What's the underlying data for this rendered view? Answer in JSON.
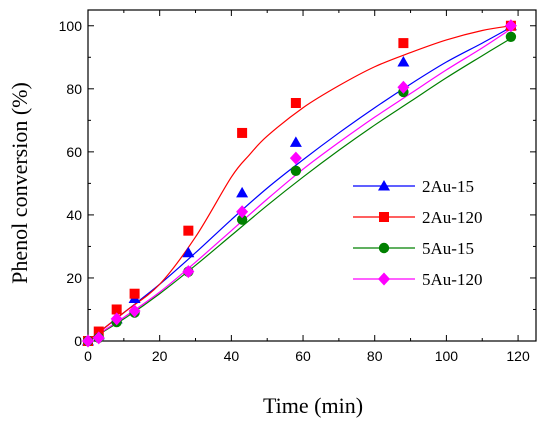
{
  "chart_data": {
    "type": "scatter",
    "title": "",
    "xlabel": "Time (min)",
    "ylabel": "Phenol conversion (%)",
    "xlim": [
      0,
      125
    ],
    "ylim": [
      0,
      105
    ],
    "xticks": [
      "0",
      "20",
      "40",
      "60",
      "80",
      "100",
      "120"
    ],
    "yticks": [
      "0",
      "20",
      "40",
      "60",
      "80",
      "100"
    ],
    "grid": false,
    "legend_position": "right",
    "series": [
      {
        "name": "2Au-15",
        "color": "#0000ff",
        "marker": "triangle",
        "x": [
          0,
          3,
          8,
          13,
          28,
          43,
          58,
          88,
          118
        ],
        "y": [
          0,
          2,
          7,
          13.5,
          28,
          47,
          63,
          88.5,
          100
        ],
        "fit": [
          [
            0,
            0
          ],
          [
            10,
            9
          ],
          [
            20,
            18
          ],
          [
            30,
            28
          ],
          [
            40,
            38.5
          ],
          [
            50,
            48.5
          ],
          [
            60,
            57.5
          ],
          [
            70,
            66
          ],
          [
            80,
            74
          ],
          [
            90,
            81.5
          ],
          [
            100,
            88.5
          ],
          [
            110,
            94.5
          ],
          [
            118,
            99.5
          ]
        ]
      },
      {
        "name": "2Au-120",
        "color": "#ff0000",
        "marker": "square",
        "x": [
          0,
          3,
          8,
          13,
          28,
          43,
          58,
          88,
          118
        ],
        "y": [
          0,
          3,
          10,
          15,
          35,
          66,
          75.5,
          94.5,
          100
        ],
        "fit": [
          [
            0,
            0
          ],
          [
            10,
            9
          ],
          [
            20,
            18
          ],
          [
            30,
            33
          ],
          [
            40,
            52
          ],
          [
            45,
            59
          ],
          [
            50,
            65
          ],
          [
            60,
            74
          ],
          [
            70,
            81
          ],
          [
            80,
            87
          ],
          [
            90,
            91.5
          ],
          [
            100,
            95.5
          ],
          [
            110,
            98.5
          ],
          [
            118,
            100
          ]
        ]
      },
      {
        "name": "5Au-15",
        "color": "#008000",
        "marker": "circle",
        "x": [
          0,
          3,
          8,
          13,
          28,
          43,
          58,
          88,
          118
        ],
        "y": [
          0,
          1,
          6,
          9,
          22,
          38.5,
          54,
          79,
          96.5
        ],
        "fit": [
          [
            0,
            0
          ],
          [
            10,
            7
          ],
          [
            20,
            15
          ],
          [
            30,
            24
          ],
          [
            40,
            33.5
          ],
          [
            50,
            43
          ],
          [
            60,
            52
          ],
          [
            70,
            60.5
          ],
          [
            80,
            68.5
          ],
          [
            90,
            76
          ],
          [
            100,
            83.5
          ],
          [
            110,
            90.5
          ],
          [
            118,
            96
          ]
        ]
      },
      {
        "name": "5Au-120",
        "color": "#ff00ff",
        "marker": "diamond",
        "x": [
          0,
          3,
          8,
          13,
          28,
          43,
          58,
          88,
          118
        ],
        "y": [
          0,
          1,
          7,
          9.5,
          22,
          41,
          58,
          80.5,
          100
        ],
        "fit": [
          [
            0,
            0
          ],
          [
            10,
            7.5
          ],
          [
            20,
            15.5
          ],
          [
            30,
            25
          ],
          [
            40,
            35
          ],
          [
            50,
            45
          ],
          [
            60,
            54.5
          ],
          [
            70,
            63
          ],
          [
            80,
            71
          ],
          [
            90,
            78.5
          ],
          [
            100,
            86
          ],
          [
            110,
            93
          ],
          [
            118,
            99
          ]
        ]
      }
    ]
  }
}
